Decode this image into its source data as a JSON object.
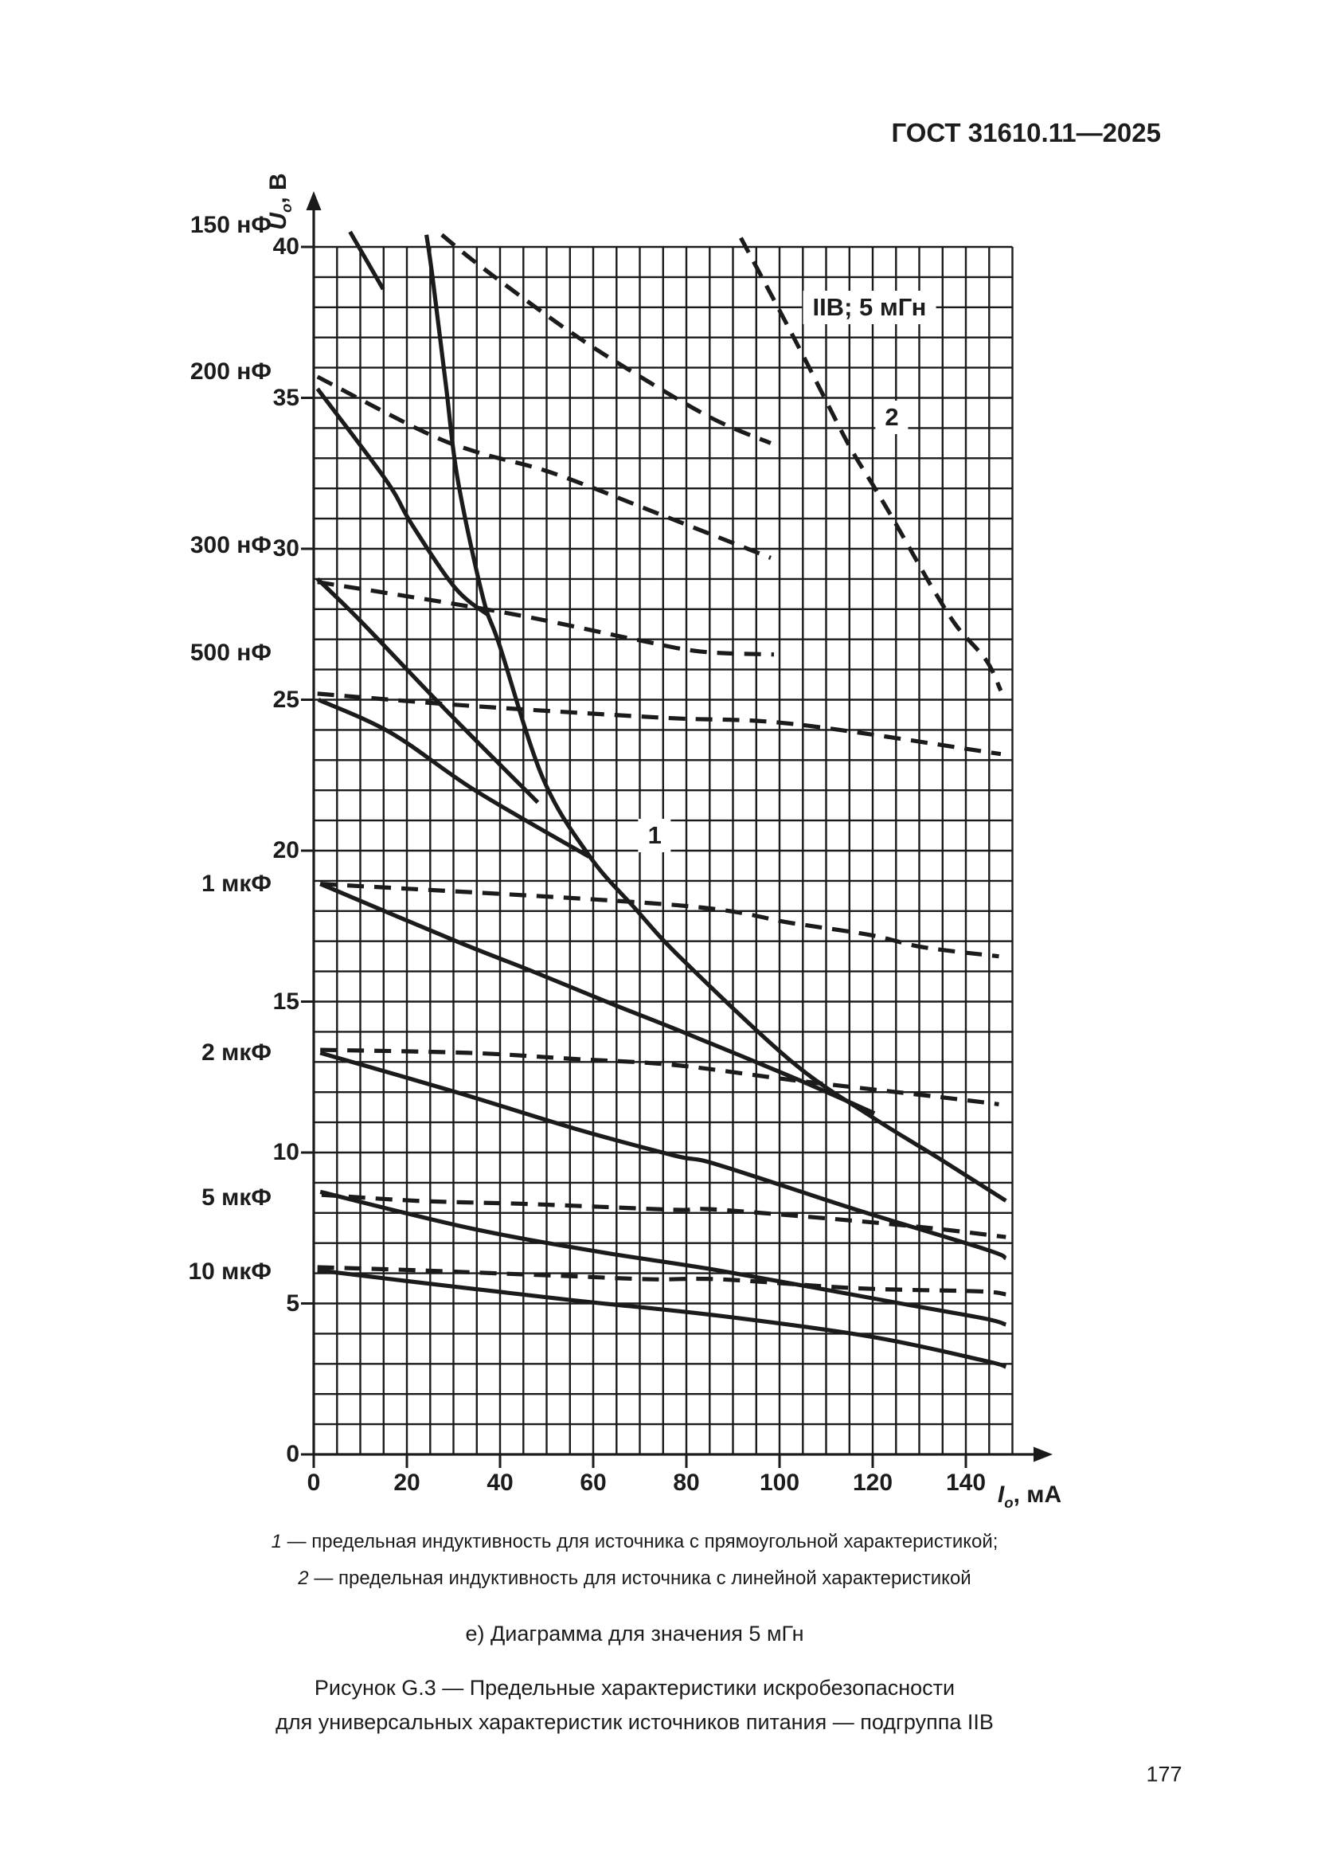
{
  "page": {
    "header": "ГОСТ 31610.11—2025",
    "page_number": "177"
  },
  "captions": {
    "legend1_marker": "1",
    "legend1_text": " — предельная индуктивность для источника с прямоугольной характеристикой;",
    "legend2_marker": "2",
    "legend2_text": " — предельная индуктивность для источника с линейной характеристикой",
    "item_caption": "е) Диаграмма для значения 5 мГн",
    "figure_caption_line1": "Рисунок G.3 — Предельные характеристики искробезопасности",
    "figure_caption_line2": "для универсальных характеристик источников питания — подгруппа IIB"
  },
  "chart_data": {
    "type": "line",
    "x_range": [
      0,
      150
    ],
    "y_range": [
      0,
      40
    ],
    "x_minor_step_mA": 5,
    "y_minor_step_V": 1,
    "x_ticks": [
      0,
      20,
      40,
      60,
      80,
      100,
      120,
      140
    ],
    "y_ticks": [
      0,
      5,
      10,
      15,
      20,
      25,
      30,
      35,
      40
    ],
    "x_axis_label": {
      "symbol": "I",
      "sub": "o",
      "unit": ", мА"
    },
    "y_axis_label": {
      "symbol": "U",
      "sub": "o",
      "unit": ", В"
    },
    "grid": "on",
    "annotations": [
      {
        "text": "IIB; 5 мГн",
        "I": 119.3,
        "U": 38.0
      },
      {
        "text": "2",
        "I": 124.1,
        "U": 34.35
      },
      {
        "text": "1",
        "I": 73.2,
        "U": 20.5
      }
    ],
    "capacitance_labels": [
      {
        "text": "150 нФ",
        "U": 40.7
      },
      {
        "text": "200 нФ",
        "U": 35.85
      },
      {
        "text": "300 нФ",
        "U": 30.1
      },
      {
        "text": "500 нФ",
        "U": 26.55
      },
      {
        "text": "1 мкФ",
        "U": 18.9
      },
      {
        "text": "2 мкФ",
        "U": 13.3
      },
      {
        "text": "5 мкФ",
        "U": 8.5
      },
      {
        "text": "10 мкФ",
        "U": 6.05
      }
    ],
    "series": [
      {
        "name": "inductance-limit-rectangular",
        "label": "1",
        "style": "solid",
        "points": [
          [
            24.2,
            40.4
          ],
          [
            25.5,
            39.0
          ],
          [
            28.4,
            35.4
          ],
          [
            30.9,
            32.3
          ],
          [
            36.3,
            28.4
          ],
          [
            39.9,
            26.8
          ],
          [
            49.2,
            22.4
          ],
          [
            59.3,
            19.8
          ],
          [
            68.9,
            18.1
          ],
          [
            79.1,
            16.4
          ],
          [
            102.7,
            13.0
          ],
          [
            119.6,
            11.2
          ],
          [
            134.3,
            9.8
          ],
          [
            148.6,
            8.4
          ]
        ]
      },
      {
        "name": "inductance-limit-linear",
        "label": "2",
        "style": "dashed",
        "points": [
          [
            91.7,
            40.3
          ],
          [
            99.3,
            38.1
          ],
          [
            104.4,
            36.6
          ],
          [
            109.0,
            35.2
          ],
          [
            115.0,
            33.4
          ],
          [
            120.1,
            32.1
          ],
          [
            124.7,
            30.9
          ],
          [
            130.2,
            29.4
          ],
          [
            133.6,
            28.5
          ],
          [
            138.2,
            27.4
          ],
          [
            144.4,
            26.3
          ],
          [
            147.5,
            25.3
          ]
        ]
      },
      {
        "name": "cap-150nF-rectangular",
        "capacitance": "150 нФ",
        "style": "solid",
        "points": [
          [
            7.8,
            40.5
          ],
          [
            14.9,
            38.6
          ]
        ]
      },
      {
        "name": "cap-150nF-linear",
        "capacitance": "150 нФ",
        "style": "dashed",
        "points": [
          [
            27.5,
            40.4
          ],
          [
            36.3,
            39.3
          ],
          [
            54.9,
            37.2
          ],
          [
            70.1,
            35.7
          ],
          [
            85.8,
            34.3
          ],
          [
            98.1,
            33.5
          ]
        ]
      },
      {
        "name": "cap-200nF-rectangular",
        "capacitance": "200 нФ",
        "style": "solid",
        "points": [
          [
            0.8,
            35.3
          ],
          [
            15.4,
            32.3
          ],
          [
            21.1,
            30.8
          ],
          [
            30.4,
            28.7
          ],
          [
            37.5,
            27.8
          ]
        ]
      },
      {
        "name": "cap-200nF-linear",
        "capacitance": "200 нФ",
        "style": "dashed",
        "points": [
          [
            0.8,
            35.7
          ],
          [
            23.3,
            33.9
          ],
          [
            35.1,
            33.2
          ],
          [
            51.5,
            32.5
          ],
          [
            75.0,
            31.1
          ],
          [
            98.1,
            29.7
          ]
        ]
      },
      {
        "name": "cap-300nF-rectangular",
        "capacitance": "300 нФ",
        "style": "solid",
        "points": [
          [
            0.8,
            29.0
          ],
          [
            10.1,
            27.6
          ],
          [
            28.1,
            24.7
          ],
          [
            48.1,
            21.6
          ]
        ]
      },
      {
        "name": "cap-300nF-linear",
        "capacitance": "300 нФ",
        "style": "dashed",
        "points": [
          [
            0.8,
            28.9
          ],
          [
            40.5,
            27.9
          ],
          [
            68.9,
            27.0
          ],
          [
            82.9,
            26.6
          ],
          [
            98.8,
            26.5
          ]
        ]
      },
      {
        "name": "cap-500nF-rectangular",
        "capacitance": "500 нФ",
        "style": "solid",
        "points": [
          [
            1.0,
            25.0
          ],
          [
            16.6,
            23.9
          ],
          [
            34.6,
            22.0
          ],
          [
            59.1,
            19.8
          ]
        ]
      },
      {
        "name": "cap-500nF-linear",
        "capacitance": "500 нФ",
        "style": "dashed",
        "points": [
          [
            0.8,
            25.2
          ],
          [
            33.4,
            24.8
          ],
          [
            75.2,
            24.4
          ],
          [
            102.7,
            24.2
          ],
          [
            147.5,
            23.2
          ]
        ]
      },
      {
        "name": "cap-1uF-rectangular",
        "capacitance": "1 мкФ",
        "style": "solid",
        "points": [
          [
            1.4,
            18.9
          ],
          [
            30.6,
            17.0
          ],
          [
            47.0,
            16.0
          ],
          [
            64.4,
            14.9
          ],
          [
            79.1,
            14.0
          ],
          [
            102.7,
            12.5
          ],
          [
            120.4,
            11.3
          ]
        ]
      },
      {
        "name": "cap-1uF-linear",
        "capacitance": "1 мкФ",
        "style": "dashed",
        "points": [
          [
            1.4,
            18.9
          ],
          [
            77.4,
            18.2
          ],
          [
            102.7,
            17.6
          ],
          [
            119.6,
            17.2
          ],
          [
            130.9,
            16.8
          ],
          [
            147.1,
            16.5
          ]
        ]
      },
      {
        "name": "cap-2uF-rectangular",
        "capacitance": "2 мкФ",
        "style": "solid",
        "points": [
          [
            1.4,
            13.3
          ],
          [
            30.6,
            12.0
          ],
          [
            55.9,
            10.8
          ],
          [
            77.4,
            9.9
          ],
          [
            86.7,
            9.6
          ],
          [
            116.6,
            8.1
          ],
          [
            144.1,
            6.8
          ],
          [
            148.6,
            6.5
          ]
        ]
      },
      {
        "name": "cap-2uF-linear",
        "capacitance": "2 мкФ",
        "style": "dashed",
        "points": [
          [
            1.4,
            13.4
          ],
          [
            33.4,
            13.3
          ],
          [
            55.9,
            13.1
          ],
          [
            77.4,
            12.9
          ],
          [
            102.7,
            12.4
          ],
          [
            125.2,
            12.0
          ],
          [
            136.5,
            11.8
          ],
          [
            147.1,
            11.6
          ]
        ]
      },
      {
        "name": "cap-5uF-rectangular",
        "capacitance": "5 мкФ",
        "style": "solid",
        "points": [
          [
            1.4,
            8.7
          ],
          [
            33.4,
            7.5
          ],
          [
            61.7,
            6.7
          ],
          [
            86.7,
            6.1
          ],
          [
            126.0,
            5.0
          ],
          [
            144.1,
            4.5
          ],
          [
            148.6,
            4.3
          ]
        ]
      },
      {
        "name": "cap-5uF-linear",
        "capacitance": "5 мкФ",
        "style": "dashed",
        "points": [
          [
            1.7,
            8.6
          ],
          [
            22.1,
            8.4
          ],
          [
            44.8,
            8.3
          ],
          [
            61.7,
            8.2
          ],
          [
            78.5,
            8.1
          ],
          [
            87.5,
            8.1
          ],
          [
            126.0,
            7.6
          ],
          [
            148.6,
            7.2
          ]
        ]
      },
      {
        "name": "cap-10uF-rectangular",
        "capacitance": "10 мкФ",
        "style": "solid",
        "points": [
          [
            0.8,
            6.1
          ],
          [
            27.9,
            5.6
          ],
          [
            55.9,
            5.1
          ],
          [
            86.7,
            4.6
          ],
          [
            119.6,
            3.9
          ],
          [
            144.1,
            3.1
          ],
          [
            148.6,
            2.9
          ]
        ]
      },
      {
        "name": "cap-10uF-linear",
        "capacitance": "10 мкФ",
        "style": "dashed",
        "points": [
          [
            0.8,
            6.2
          ],
          [
            22.1,
            6.1
          ],
          [
            39.0,
            6.0
          ],
          [
            55.9,
            5.9
          ],
          [
            72.8,
            5.8
          ],
          [
            87.5,
            5.8
          ],
          [
            116.9,
            5.5
          ],
          [
            142.9,
            5.4
          ],
          [
            148.6,
            5.3
          ]
        ]
      }
    ]
  }
}
